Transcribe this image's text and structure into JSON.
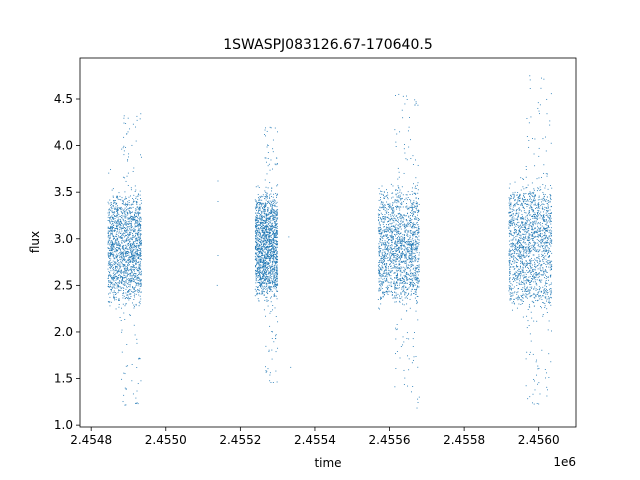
{
  "chart_data": {
    "type": "scatter",
    "title": "1SWASPJ083126.67-170640.5",
    "xlabel": "time",
    "ylabel": "flux",
    "x_offset_label": "1e6",
    "xlim": [
      2454770,
      2456100
    ],
    "ylim": [
      0.98,
      4.94
    ],
    "grid": false,
    "marker_color": "#1f77b4",
    "x_tick_labels": [
      "2.4548",
      "2.4550",
      "2.4552",
      "2.4554",
      "2.4556",
      "2.4558",
      "2.4560"
    ],
    "x_ticks": [
      2454800,
      2455000,
      2455200,
      2455400,
      2455600,
      2455800,
      2456000
    ],
    "y_ticks": [
      1.0,
      1.5,
      2.0,
      2.5,
      3.0,
      3.5,
      4.0,
      4.5
    ],
    "y_tick_labels": [
      "1.0",
      "1.5",
      "2.0",
      "2.5",
      "3.0",
      "3.5",
      "4.0",
      "4.5"
    ],
    "observing_seasons": [
      {
        "x_range": [
          2454845,
          2454935
        ],
        "core_flux_range": [
          2.35,
          3.45
        ],
        "flux_extremes": [
          1.2,
          4.35
        ]
      },
      {
        "x_range": [
          2455240,
          2455300
        ],
        "core_flux_range": [
          2.4,
          3.45
        ],
        "flux_extremes": [
          1.45,
          4.2
        ]
      },
      {
        "x_range": [
          2455570,
          2455680
        ],
        "core_flux_range": [
          2.35,
          3.5
        ],
        "flux_extremes": [
          1.18,
          4.55
        ]
      },
      {
        "x_range": [
          2455920,
          2456035
        ],
        "core_flux_range": [
          2.3,
          3.55
        ],
        "flux_extremes": [
          1.2,
          4.75
        ]
      }
    ],
    "isolated_points": [
      {
        "x": 2455140,
        "y": 3.62
      },
      {
        "x": 2455140,
        "y": 3.4
      },
      {
        "x": 2455140,
        "y": 2.82
      },
      {
        "x": 2455138,
        "y": 2.5
      },
      {
        "x": 2455330,
        "y": 3.02
      },
      {
        "x": 2455335,
        "y": 1.62
      }
    ]
  }
}
